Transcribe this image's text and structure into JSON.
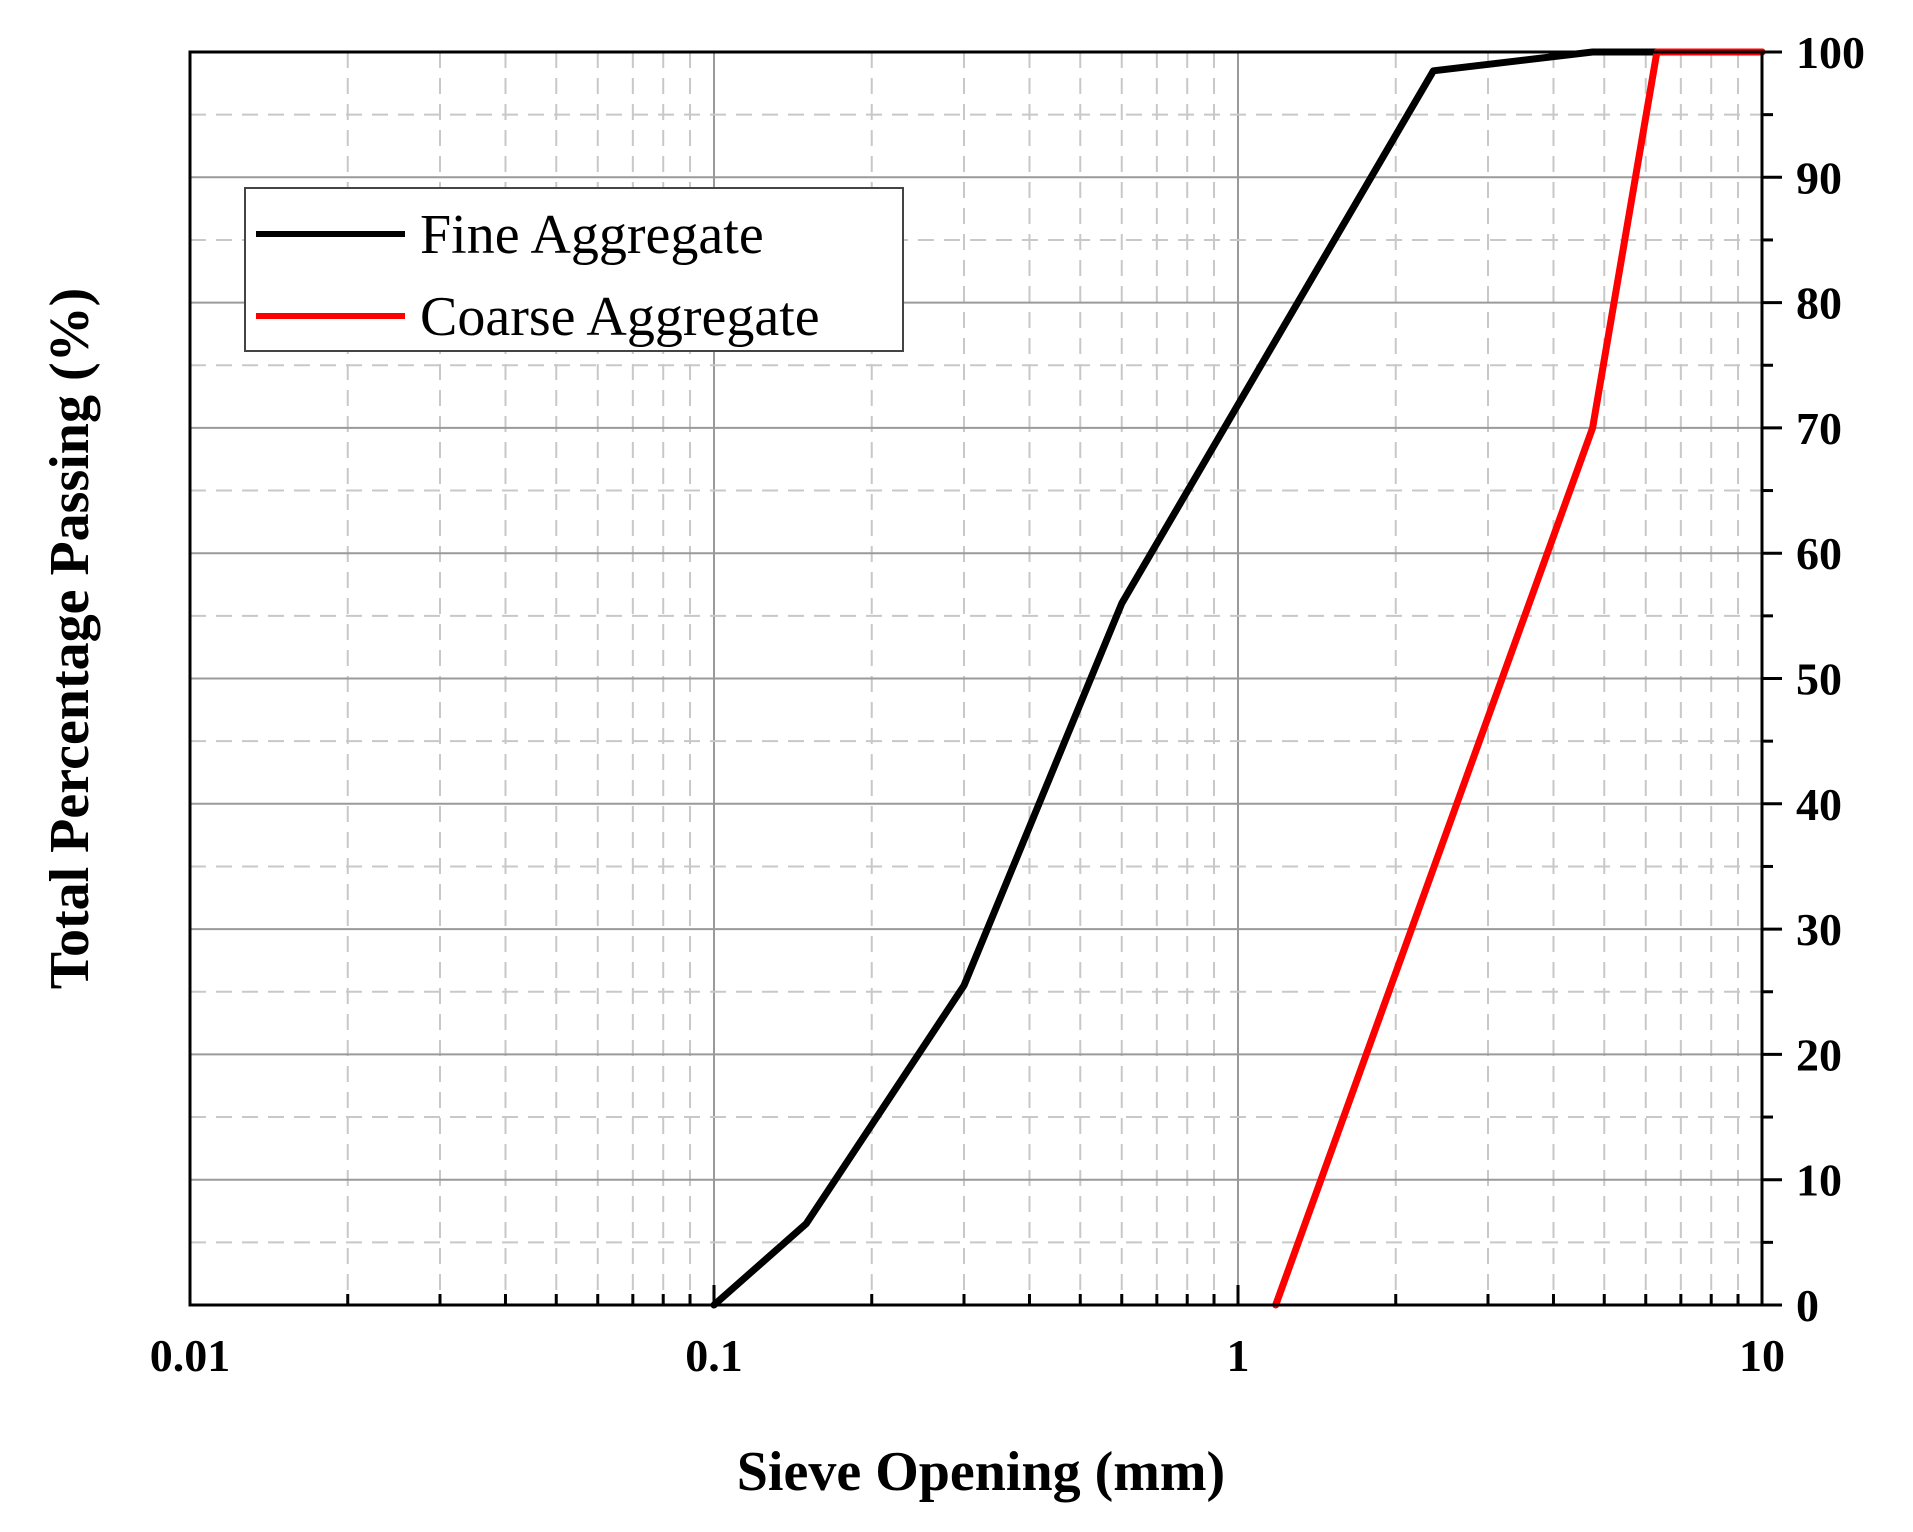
{
  "chart_data": {
    "type": "line",
    "title": "",
    "xlabel": "Sieve Opening (mm)",
    "ylabel": "Total Percentage Passing (%)",
    "x_scale": "log",
    "xlim": [
      0.01,
      10
    ],
    "ylim": [
      0,
      100
    ],
    "x_ticks": [
      "0.01",
      "0.1",
      "1",
      "10"
    ],
    "y_ticks": [
      "0",
      "10",
      "20",
      "30",
      "40",
      "50",
      "60",
      "70",
      "80",
      "90",
      "100"
    ],
    "y_axis_side": "right",
    "grid": true,
    "legend_position": "top-left",
    "series": [
      {
        "name": "Fine Aggregate",
        "color": "#000000",
        "x": [
          0.1,
          0.15,
          0.3,
          0.6,
          1.18,
          2.36,
          4.75,
          10
        ],
        "y": [
          0,
          6.5,
          25.5,
          56,
          77,
          98.5,
          100,
          100
        ]
      },
      {
        "name": "Coarse Aggregate",
        "color": "#ff0000",
        "x": [
          1.18,
          4.75,
          6.3,
          10
        ],
        "y": [
          0,
          70,
          100,
          100
        ]
      }
    ]
  }
}
